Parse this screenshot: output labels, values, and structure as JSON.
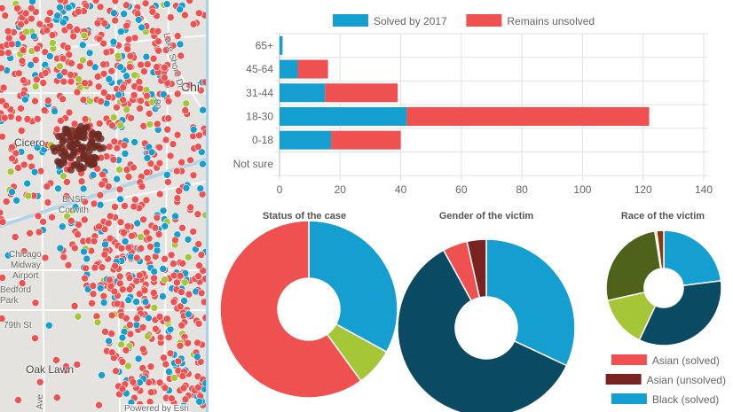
{
  "map": {
    "labels": {
      "cicero": "Cicero",
      "chicago": "Chi",
      "lake_shore": "Lake Shore Dr",
      "midway": "Chicago Midway Airport",
      "midway_l1": "Chicago",
      "midway_l2": "Midway",
      "midway_l3": "Airport",
      "bnsf_l1": "BNSF",
      "bnsf_l2": "Corwith",
      "bedford_l1": "Bedford",
      "bedford_l2": "Park",
      "st79": "79th St",
      "oak_lawn": "Oak Lawn",
      "ave": "Ave",
      "hwy": "90",
      "attribution": "Powered by Esri"
    },
    "colors": {
      "unsolved": "#ef5050",
      "solved": "#159fd0",
      "other": "#a5c636",
      "selected": "#6e2a22"
    }
  },
  "chart_data": [
    {
      "type": "bar",
      "orientation": "horizontal",
      "stacked": true,
      "categories": [
        "65+",
        "45-64",
        "31-44",
        "18-30",
        "0-18",
        "Not sure"
      ],
      "series": [
        {
          "name": "Solved by 2017",
          "color": "#159fd0",
          "values": [
            1,
            6,
            15,
            42,
            17,
            0
          ]
        },
        {
          "name": "Remains unsolved",
          "color": "#ef5050",
          "values": [
            0,
            10,
            24,
            80,
            23,
            0
          ]
        }
      ],
      "xlim": [
        0,
        140
      ],
      "xticks": [
        "0",
        "20",
        "40",
        "60",
        "80",
        "100",
        "120",
        "140"
      ],
      "grid": true,
      "legend": "top"
    },
    {
      "type": "pie",
      "donut": true,
      "title": "Status of the case",
      "slices": [
        {
          "value": 33,
          "color": "#159fd0"
        },
        {
          "value": 7,
          "color": "#a5c636"
        },
        {
          "value": 60,
          "color": "#ef5050"
        }
      ]
    },
    {
      "type": "pie",
      "donut": true,
      "title": "Gender of the victim",
      "slices": [
        {
          "value": 32,
          "color": "#159fd0"
        },
        {
          "value": 60,
          "color": "#0b4a63"
        },
        {
          "value": 4.5,
          "color": "#ef5050"
        },
        {
          "value": 3.5,
          "color": "#7a2222"
        }
      ]
    },
    {
      "type": "pie",
      "donut": true,
      "title": "Race of the victim",
      "slices": [
        {
          "value": 23,
          "color": "#159fd0"
        },
        {
          "value": 34,
          "color": "#0b4a63"
        },
        {
          "value": 14.5,
          "color": "#a5c636"
        },
        {
          "value": 26,
          "color": "#4f6219"
        },
        {
          "value": 0.5,
          "color": "#e8a070"
        },
        {
          "value": 2,
          "color": "#8a3a12"
        }
      ],
      "legend": [
        {
          "label": "Asian (solved)",
          "color": "#ef5050"
        },
        {
          "label": "Asian (unsolved)",
          "color": "#7a2222"
        },
        {
          "label": "Black (solved)",
          "color": "#159fd0"
        }
      ]
    }
  ]
}
